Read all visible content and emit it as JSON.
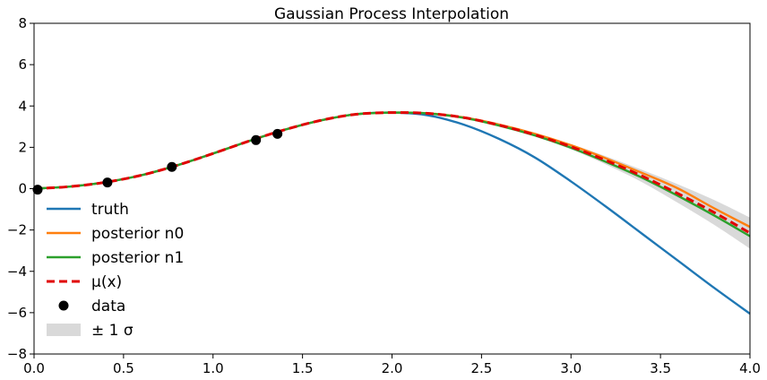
{
  "chart_data": {
    "type": "line",
    "title": "Gaussian Process Interpolation",
    "xlabel": "",
    "ylabel": "",
    "xlim": [
      0.0,
      4.0
    ],
    "ylim": [
      -8,
      8
    ],
    "x_ticks": [
      "0.0",
      "0.5",
      "1.0",
      "1.5",
      "2.0",
      "2.5",
      "3.0",
      "3.5",
      "4.0"
    ],
    "y_ticks": [
      "−8",
      "−6",
      "−4",
      "−2",
      "0",
      "2",
      "4",
      "6",
      "8"
    ],
    "grid": false,
    "legend_position": "lower-left",
    "x": [
      0.0,
      0.2,
      0.4,
      0.6,
      0.8,
      1.0,
      1.2,
      1.4,
      1.6,
      1.8,
      2.0,
      2.2,
      2.4,
      2.6,
      2.8,
      3.0,
      3.2,
      3.4,
      3.6,
      3.8,
      4.0
    ],
    "series": [
      {
        "name": "truth",
        "color": "#1f77b4",
        "style": "solid",
        "values": [
          0.0,
          0.1,
          0.31,
          0.65,
          1.13,
          1.7,
          2.3,
          2.85,
          3.3,
          3.6,
          3.68,
          3.55,
          3.1,
          2.4,
          1.5,
          0.35,
          -0.9,
          -2.2,
          -3.5,
          -4.8,
          -6.05
        ]
      },
      {
        "name": "posterior n0",
        "color": "#ff7f0e",
        "style": "solid",
        "values": [
          0.0,
          0.1,
          0.31,
          0.65,
          1.13,
          1.7,
          2.3,
          2.85,
          3.3,
          3.6,
          3.68,
          3.65,
          3.45,
          3.1,
          2.65,
          2.1,
          1.45,
          0.75,
          0.0,
          -0.95,
          -1.85
        ]
      },
      {
        "name": "posterior n1",
        "color": "#2ca02c",
        "style": "solid",
        "values": [
          0.0,
          0.1,
          0.31,
          0.65,
          1.13,
          1.7,
          2.3,
          2.85,
          3.3,
          3.6,
          3.68,
          3.64,
          3.43,
          3.05,
          2.57,
          1.98,
          1.28,
          0.52,
          -0.36,
          -1.3,
          -2.3
        ]
      },
      {
        "name": "μ(x)",
        "color": "#e00000",
        "style": "dashed",
        "values": [
          0.0,
          0.1,
          0.31,
          0.65,
          1.13,
          1.7,
          2.3,
          2.85,
          3.3,
          3.6,
          3.68,
          3.64,
          3.44,
          3.07,
          2.6,
          2.03,
          1.35,
          0.6,
          -0.25,
          -1.15,
          -2.15
        ]
      }
    ],
    "band": {
      "name": "± 1 σ",
      "color": "#d9d9d9",
      "lower": [
        0.0,
        0.1,
        0.31,
        0.65,
        1.13,
        1.7,
        2.3,
        2.85,
        3.3,
        3.6,
        3.68,
        3.63,
        3.41,
        3.02,
        2.52,
        1.9,
        1.15,
        0.3,
        -0.7,
        -1.75,
        -2.9
      ],
      "upper": [
        0.0,
        0.1,
        0.31,
        0.65,
        1.13,
        1.7,
        2.3,
        2.85,
        3.3,
        3.6,
        3.68,
        3.65,
        3.47,
        3.12,
        2.68,
        2.16,
        1.55,
        0.9,
        0.2,
        -0.55,
        -1.4
      ]
    },
    "data_points": {
      "name": "data",
      "color": "#000000",
      "x": [
        0.02,
        0.41,
        0.77,
        1.24,
        1.36
      ],
      "y": [
        -0.05,
        0.3,
        1.05,
        2.35,
        2.65
      ]
    }
  }
}
